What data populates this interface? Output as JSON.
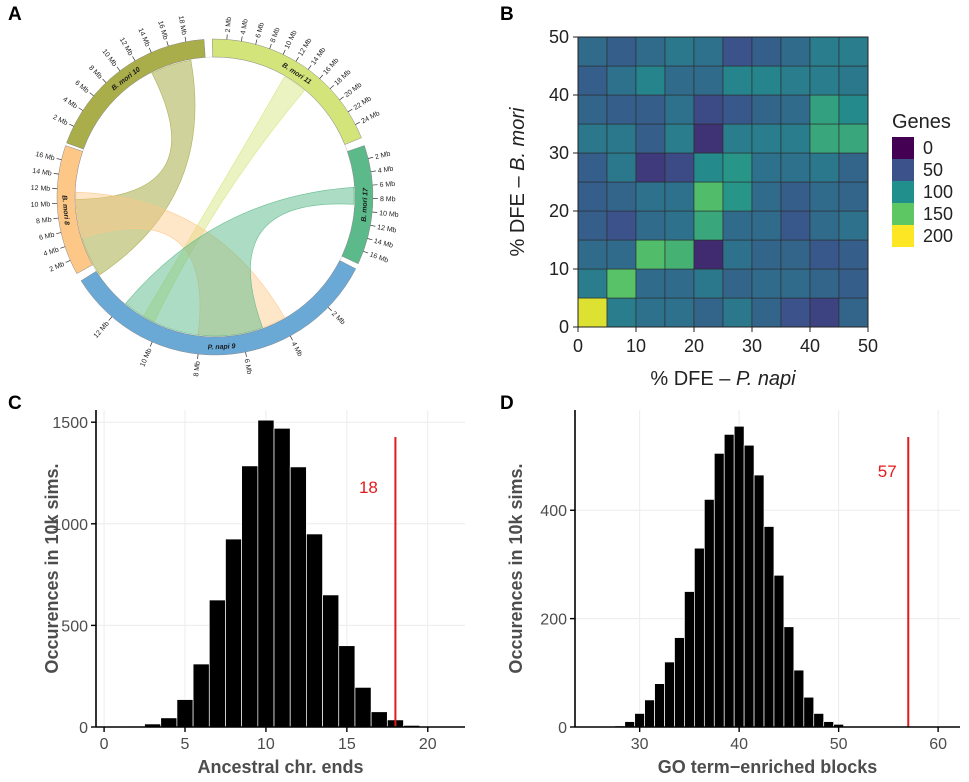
{
  "panel_labels": [
    "A",
    "B",
    "C",
    "D"
  ],
  "colors": {
    "bmori10": "#a9ad4a",
    "bmori11": "#d3e57a",
    "bmori8": "#fdc887",
    "bmori17": "#5cb98a",
    "pnapi9": "#6aa8d6",
    "threshold_line": "#e31a1c",
    "bars": "#000000",
    "viridis": [
      "#440154",
      "#3b528b",
      "#21908c",
      "#5dc863",
      "#fde725"
    ]
  },
  "circos": {
    "segments": [
      {
        "name": "B. mori",
        "num": "10",
        "ticks": [
          "2 Mb",
          "4 Mb",
          "6 Mb",
          "8 Mb",
          "10 Mb",
          "12 Mb",
          "14 Mb",
          "16 Mb",
          "18 Mb"
        ]
      },
      {
        "name": "B. mori",
        "num": "11",
        "ticks": [
          "2 Mb",
          "4 Mb",
          "6 Mb",
          "8 Mb",
          "10 Mb",
          "12 Mb",
          "14 Mb",
          "16 Mb",
          "18 Mb",
          "20 Mb",
          "22 Mb",
          "24 Mb"
        ]
      },
      {
        "name": "B. mori",
        "num": "17",
        "ticks": [
          "2 Mb",
          "4 Mb",
          "6 Mb",
          "8 Mb",
          "10 Mb",
          "12 Mb",
          "14 Mb",
          "16 Mb"
        ]
      },
      {
        "name": "P. napi",
        "num": "9",
        "ticks": [
          "2 Mb",
          "4 Mb",
          "6 Mb",
          "8 Mb",
          "10 Mb",
          "12 Mb"
        ]
      },
      {
        "name": "B. mori",
        "num": "8",
        "ticks": [
          "2 Mb",
          "4 Mb",
          "6 Mb",
          "8 Mb",
          "10 Mb",
          "12 Mb",
          "14 Mb",
          "16 Mb"
        ]
      }
    ]
  },
  "chart_data": [
    {
      "panel": "B",
      "type": "heatmap",
      "xlabel": "% DFE – P. napi",
      "xlabel_plain": "% DFE – ",
      "xlabel_italic": "P. napi",
      "ylabel": "% DFE – B. mori",
      "ylabel_plain": "% DFE – ",
      "ylabel_italic": "B. mori",
      "x_ticks": [
        0,
        10,
        20,
        30,
        40,
        50
      ],
      "y_ticks": [
        0,
        10,
        20,
        30,
        40,
        50
      ],
      "xlim": [
        0,
        50
      ],
      "ylim": [
        0,
        50
      ],
      "bin_width": 5,
      "legend_title": "Genes",
      "legend_position": "right",
      "legend_ticks": [
        0,
        50,
        100,
        150,
        200
      ],
      "color_range": [
        0,
        200
      ],
      "values_rows_bottom_to_top": [
        [
          190,
          85,
          75,
          75,
          65,
          80,
          65,
          50,
          40,
          65
        ],
        [
          85,
          145,
          70,
          70,
          80,
          65,
          70,
          70,
          65,
          60
        ],
        [
          70,
          70,
          140,
          130,
          25,
          75,
          65,
          65,
          55,
          60
        ],
        [
          60,
          50,
          70,
          75,
          120,
          70,
          70,
          55,
          70,
          75
        ],
        [
          60,
          65,
          75,
          75,
          140,
          105,
          70,
          60,
          70,
          65
        ],
        [
          60,
          80,
          35,
          45,
          95,
          105,
          75,
          75,
          80,
          65
        ],
        [
          80,
          80,
          60,
          85,
          30,
          85,
          85,
          85,
          120,
          120
        ],
        [
          65,
          60,
          60,
          75,
          45,
          55,
          65,
          70,
          115,
          95
        ],
        [
          60,
          75,
          90,
          70,
          70,
          90,
          90,
          85,
          85,
          80
        ],
        [
          70,
          60,
          70,
          80,
          75,
          50,
          60,
          70,
          85,
          85
        ]
      ]
    },
    {
      "panel": "C",
      "type": "bar",
      "xlabel": "Ancestral chr. ends",
      "ylabel": "Occurences in 10k sims.",
      "x_ticks": [
        0,
        5,
        10,
        15,
        20
      ],
      "y_ticks": [
        0,
        500,
        1000,
        1500
      ],
      "xlim": [
        -0.5,
        22.3
      ],
      "ylim": [
        0,
        1560
      ],
      "x": [
        2,
        3,
        4,
        5,
        6,
        7,
        8,
        9,
        10,
        11,
        12,
        13,
        14,
        15,
        16,
        17,
        18,
        19
      ],
      "values": [
        3,
        15,
        45,
        135,
        310,
        625,
        925,
        1285,
        1510,
        1470,
        1280,
        950,
        650,
        400,
        195,
        75,
        35,
        8
      ],
      "threshold": 18,
      "threshold_label": "18"
    },
    {
      "panel": "D",
      "type": "bar",
      "xlabel": "GO term−enriched blocks",
      "ylabel": "Occurences in 10k sims.",
      "x_ticks": [
        30,
        40,
        50,
        60
      ],
      "y_ticks": [
        0,
        200,
        400
      ],
      "xlim": [
        23.5,
        62.2
      ],
      "ylim": [
        0,
        585
      ],
      "x": [
        28,
        29,
        30,
        31,
        32,
        33,
        34,
        35,
        36,
        37,
        38,
        39,
        40,
        41,
        42,
        43,
        44,
        45,
        46,
        47,
        48,
        49,
        50
      ],
      "values": [
        2,
        10,
        25,
        50,
        80,
        120,
        165,
        250,
        330,
        420,
        505,
        540,
        555,
        520,
        465,
        370,
        280,
        185,
        105,
        55,
        25,
        10,
        5
      ],
      "threshold": 57,
      "threshold_label": "57"
    }
  ]
}
